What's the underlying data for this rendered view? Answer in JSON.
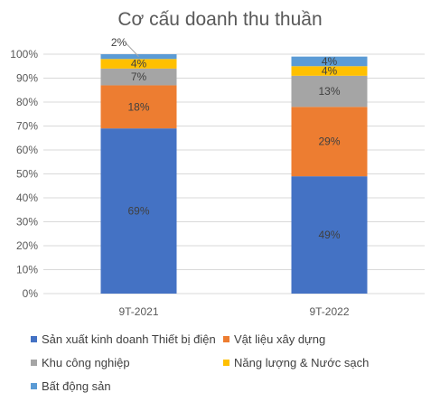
{
  "chart_data": {
    "type": "bar",
    "stacked": true,
    "title": "Cơ cấu doanh thu thuần",
    "categories": [
      "9T-2021",
      "9T-2022"
    ],
    "y_ticks": [
      "0%",
      "10%",
      "20%",
      "30%",
      "40%",
      "50%",
      "60%",
      "70%",
      "80%",
      "90%",
      "100%"
    ],
    "ylim": [
      0,
      100
    ],
    "grid": true,
    "legend_position": "bottom",
    "series": [
      {
        "name": "Sản xuất kinh doanh Thiết bị điện",
        "color": "#4472C4",
        "values": [
          69,
          49
        ],
        "labels": [
          "69%",
          "49%"
        ]
      },
      {
        "name": "Vật liệu xây dựng",
        "color": "#ED7D31",
        "values": [
          18,
          29
        ],
        "labels": [
          "18%",
          "29%"
        ]
      },
      {
        "name": "Khu công nghiệp",
        "color": "#A5A5A5",
        "values": [
          7,
          13
        ],
        "labels": [
          "7%",
          "13%"
        ]
      },
      {
        "name": "Năng lượng & Nước sạch",
        "color": "#FFC000",
        "values": [
          4,
          4
        ],
        "labels": [
          "4%",
          "4%"
        ]
      },
      {
        "name": "Bất động sản",
        "color": "#5B9BD5",
        "values": [
          2,
          4
        ],
        "labels": [
          "2%",
          "4%"
        ]
      }
    ]
  }
}
